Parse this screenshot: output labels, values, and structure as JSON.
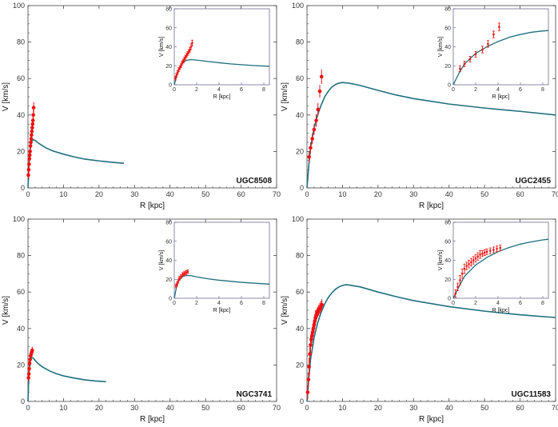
{
  "colors": {
    "curve": "#1f6f7f",
    "points": "#ee1111",
    "axis": "#444444",
    "frame": "#5a5a88"
  },
  "chart_data": [
    {
      "type": "scatter",
      "galaxy": "UGC8508",
      "xlabel": "R [kpc]",
      "ylabel": "V [km/s]",
      "xlim": [
        0,
        70
      ],
      "ylim": [
        0,
        100
      ],
      "xticks": [
        0,
        10,
        20,
        30,
        40,
        50,
        60,
        70
      ],
      "yticks": [
        0,
        20,
        40,
        60,
        80,
        100
      ],
      "curve": {
        "x": [
          0,
          0.3,
          0.6,
          1,
          1.5,
          2,
          3,
          4,
          5,
          7,
          10,
          13,
          16,
          20,
          24,
          27
        ],
        "y": [
          0,
          13,
          21,
          25.5,
          26.5,
          26,
          24.5,
          23.2,
          22,
          20.3,
          18.5,
          17,
          15.8,
          14.8,
          14,
          13.5
        ]
      },
      "points": {
        "x": [
          0.1,
          0.2,
          0.3,
          0.4,
          0.5,
          0.6,
          0.7,
          0.8,
          0.9,
          1.0,
          1.1,
          1.2,
          1.3,
          1.4,
          1.5,
          1.6
        ],
        "y": [
          7,
          10,
          13,
          16,
          18,
          20,
          23,
          25,
          27,
          29,
          31,
          33,
          35,
          37,
          40,
          44
        ],
        "err": [
          2,
          2,
          2,
          2,
          2,
          2,
          2,
          2,
          2,
          2,
          2,
          2,
          2,
          2.5,
          3,
          3
        ]
      },
      "inset": {
        "xlabel": "R [kpc]",
        "ylabel": "V [km/s]",
        "xlim": [
          0,
          8.5
        ],
        "ylim": [
          0,
          80
        ],
        "xticks": [
          0,
          2,
          4,
          6,
          8
        ],
        "yticks": [
          0,
          20,
          40,
          60,
          80
        ]
      }
    },
    {
      "type": "scatter",
      "galaxy": "UGC2455",
      "xlabel": "R [kpc]",
      "ylabel": "V [km/s]",
      "xlim": [
        0,
        70
      ],
      "ylim": [
        0,
        100
      ],
      "xticks": [
        0,
        10,
        20,
        30,
        40,
        50,
        60,
        70
      ],
      "yticks": [
        0,
        20,
        40,
        60,
        80,
        100
      ],
      "curve": {
        "x": [
          0,
          0.5,
          1,
          2,
          3,
          4,
          5,
          6,
          7,
          8,
          9,
          10,
          12,
          15,
          20,
          25,
          30,
          40,
          50,
          60,
          70
        ],
        "y": [
          0,
          12,
          22,
          33,
          40,
          45.5,
          50,
          53,
          55.3,
          56.7,
          57.5,
          57.8,
          57.4,
          56.2,
          53.5,
          51,
          49,
          46,
          43.8,
          42,
          40
        ]
      },
      "points": {
        "x": [
          0.6,
          1.0,
          1.5,
          2.0,
          2.6,
          3.1,
          3.6,
          4.1
        ],
        "y": [
          17,
          22,
          27,
          32,
          37,
          43,
          53,
          61
        ],
        "err": [
          3,
          3,
          3,
          3,
          3.5,
          3.5,
          3.5,
          4
        ]
      },
      "inset": {
        "xlabel": "R [kpc]",
        "ylabel": "V [km/s]",
        "xlim": [
          0,
          8.5
        ],
        "ylim": [
          0,
          80
        ],
        "xticks": [
          0,
          2,
          4,
          6,
          8
        ],
        "yticks": [
          0,
          20,
          40,
          60,
          80
        ]
      }
    },
    {
      "type": "scatter",
      "galaxy": "NGC3741",
      "xlabel": "R [kpc]",
      "ylabel": "V [km/s]",
      "xlim": [
        0,
        70
      ],
      "ylim": [
        0,
        100
      ],
      "xticks": [
        0,
        10,
        20,
        30,
        40,
        50,
        60,
        70
      ],
      "yticks": [
        0,
        20,
        40,
        60,
        80,
        100
      ],
      "curve": {
        "x": [
          0,
          0.2,
          0.4,
          0.7,
          1,
          1.5,
          2,
          3,
          4,
          6,
          8,
          10,
          13,
          16,
          19,
          22
        ],
        "y": [
          0,
          12,
          18.5,
          22.5,
          24,
          23.8,
          22.5,
          20.5,
          19,
          16.8,
          15.2,
          14,
          12.8,
          11.8,
          11.2,
          10.8
        ]
      },
      "points": {
        "x": [
          0.15,
          0.25,
          0.35,
          0.45,
          0.6,
          0.75,
          0.9,
          1.05,
          1.2
        ],
        "y": [
          13,
          15,
          18,
          21,
          23,
          25,
          26,
          27,
          28
        ],
        "err": [
          2,
          2,
          2,
          2,
          2,
          2,
          2,
          2,
          2
        ]
      },
      "inset": {
        "xlabel": "R [kpc]",
        "ylabel": "V [km/s]",
        "xlim": [
          0,
          8.5
        ],
        "ylim": [
          0,
          80
        ],
        "xticks": [
          0,
          2,
          4,
          6,
          8
        ],
        "yticks": [
          0,
          20,
          40,
          60,
          80
        ]
      }
    },
    {
      "type": "scatter",
      "galaxy": "UGC11583",
      "xlabel": "R [kpc]",
      "ylabel": "V [km/s]",
      "xlim": [
        0,
        70
      ],
      "ylim": [
        0,
        100
      ],
      "xticks": [
        0,
        10,
        20,
        30,
        40,
        50,
        60,
        70
      ],
      "yticks": [
        0,
        20,
        40,
        60,
        80,
        100
      ],
      "curve": {
        "x": [
          0,
          0.5,
          1,
          2,
          3,
          4,
          5,
          6,
          7,
          8,
          9,
          10,
          11,
          12,
          15,
          20,
          25,
          30,
          40,
          50,
          60,
          70
        ],
        "y": [
          0,
          12,
          23,
          35,
          43,
          49,
          53.5,
          57,
          59.5,
          61.5,
          62.8,
          63.6,
          64,
          63.8,
          62.8,
          60,
          57.5,
          55.3,
          52,
          49.5,
          47.5,
          46
        ]
      },
      "points": {
        "x": [
          0.2,
          0.4,
          0.6,
          0.8,
          1.0,
          1.2,
          1.4,
          1.6,
          1.8,
          2.0,
          2.2,
          2.4,
          2.6,
          2.8,
          3.0,
          3.3,
          3.6,
          3.9,
          4.2
        ],
        "y": [
          5,
          12,
          19,
          26,
          31,
          34,
          36,
          38,
          40,
          42,
          44,
          46,
          47,
          48,
          49,
          50,
          51,
          52,
          53
        ],
        "err": [
          4,
          4,
          5,
          5,
          5,
          4,
          4,
          4,
          4,
          4,
          4,
          4,
          3,
          3,
          3,
          3,
          3,
          3,
          3
        ]
      },
      "inset": {
        "xlabel": "R [kpc]",
        "ylabel": "V [km/s]",
        "xlim": [
          0,
          8.5
        ],
        "ylim": [
          0,
          80
        ],
        "xticks": [
          0,
          2,
          4,
          6,
          8
        ],
        "yticks": [
          0,
          20,
          40,
          60,
          80
        ]
      }
    }
  ]
}
